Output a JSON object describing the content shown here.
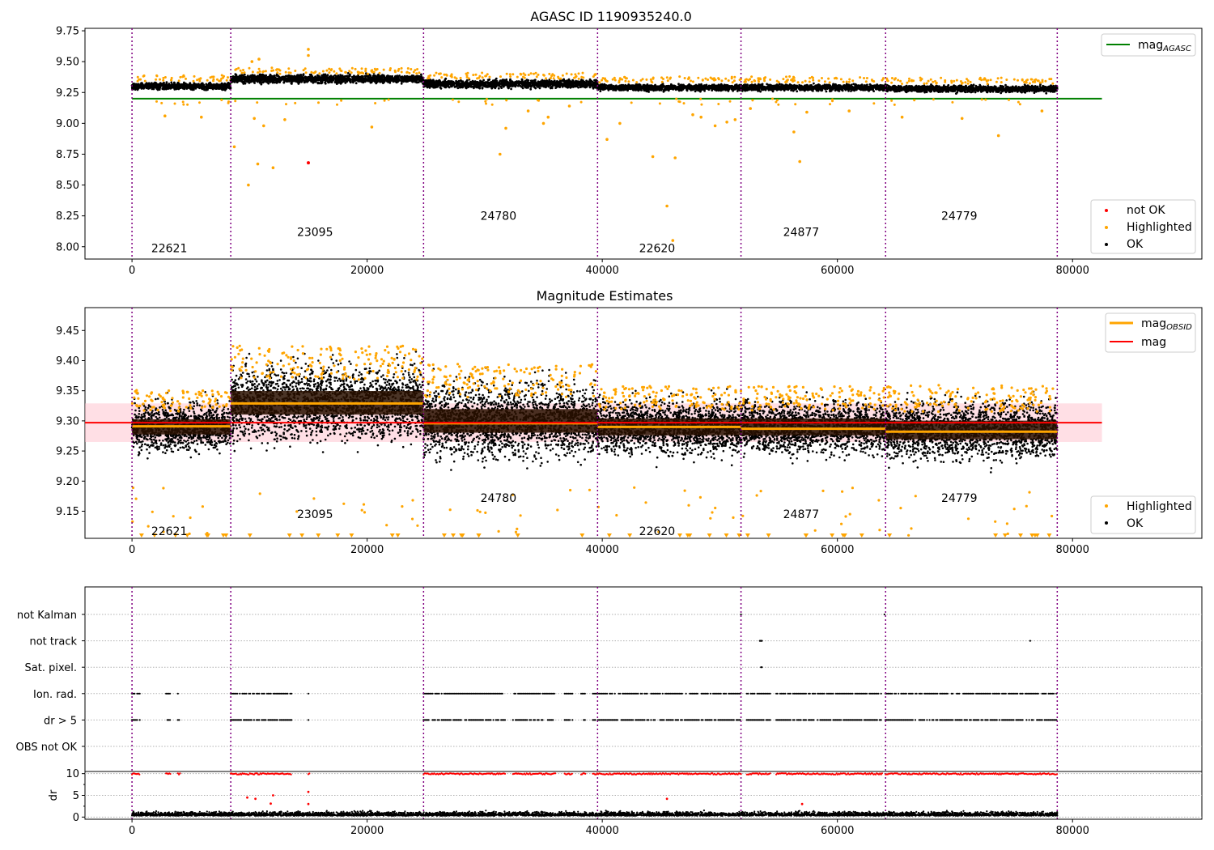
{
  "figure": {
    "background": "#ffffff"
  },
  "colors": {
    "ok": "#000000",
    "highlighted": "#ffa500",
    "not_ok": "#ff0000",
    "agasc_line": "#008000",
    "mag_line": "#ff0000",
    "mag_obsid_line": "#ffa500",
    "mag_band": "#ffc0cb",
    "obs_boundary": "#800080",
    "grid": "#b0b0b0"
  },
  "chart_data": [
    {
      "id": "top",
      "type": "scatter",
      "title": "AGASC ID 1190935240.0",
      "xlim": [
        -4000,
        91000
      ],
      "ylim": [
        7.9,
        9.77
      ],
      "xticks": [
        0,
        20000,
        40000,
        60000,
        80000
      ],
      "yticks": [
        8.0,
        8.25,
        8.5,
        8.75,
        9.0,
        9.25,
        9.5,
        9.75
      ],
      "ytick_labels": [
        "8.00",
        "8.25",
        "8.50",
        "8.75",
        "9.00",
        "9.25",
        "9.50",
        "9.75"
      ],
      "obs_boundaries": [
        0,
        8400,
        24800,
        39600,
        51800,
        64100,
        78700
      ],
      "observations": [
        {
          "obsid": "22621",
          "start": 0,
          "end": 8400,
          "mag": 9.3,
          "spread": 0.035,
          "label_y": 7.99
        },
        {
          "obsid": "23095",
          "start": 8400,
          "end": 24800,
          "mag": 9.36,
          "spread": 0.045,
          "label_y": 8.12
        },
        {
          "obsid": "24780",
          "start": 24800,
          "end": 39600,
          "mag": 9.32,
          "spread": 0.045,
          "label_y": 8.25
        },
        {
          "obsid": "22620",
          "start": 39600,
          "end": 51800,
          "mag": 9.29,
          "spread": 0.035,
          "label_y": 7.99
        },
        {
          "obsid": "24877",
          "start": 51800,
          "end": 64100,
          "mag": 9.29,
          "spread": 0.035,
          "label_y": 8.12
        },
        {
          "obsid": "24779",
          "start": 64100,
          "end": 78700,
          "mag": 9.28,
          "spread": 0.035,
          "label_y": 8.25
        }
      ],
      "mag_agasc": {
        "value": 9.2,
        "x_range": [
          0,
          82500
        ]
      },
      "not_ok_points": [
        {
          "x": 15000,
          "y": 8.68
        }
      ],
      "highlighted_outliers": [
        {
          "x": 8700,
          "y": 8.81
        },
        {
          "x": 9900,
          "y": 8.5
        },
        {
          "x": 10400,
          "y": 9.04
        },
        {
          "x": 10700,
          "y": 8.67
        },
        {
          "x": 11200,
          "y": 8.98
        },
        {
          "x": 12000,
          "y": 8.64
        },
        {
          "x": 2800,
          "y": 9.06
        },
        {
          "x": 5900,
          "y": 9.05
        },
        {
          "x": 10200,
          "y": 9.5
        },
        {
          "x": 10800,
          "y": 9.52
        },
        {
          "x": 13000,
          "y": 9.03
        },
        {
          "x": 20400,
          "y": 8.97
        },
        {
          "x": 15000,
          "y": 9.6
        },
        {
          "x": 15000,
          "y": 9.55
        },
        {
          "x": 31300,
          "y": 8.75
        },
        {
          "x": 31800,
          "y": 8.96
        },
        {
          "x": 33700,
          "y": 9.1
        },
        {
          "x": 35000,
          "y": 9.0
        },
        {
          "x": 35400,
          "y": 9.05
        },
        {
          "x": 37200,
          "y": 9.14
        },
        {
          "x": 40400,
          "y": 8.87
        },
        {
          "x": 41500,
          "y": 9.0
        },
        {
          "x": 44300,
          "y": 8.73
        },
        {
          "x": 45500,
          "y": 8.33
        },
        {
          "x": 46000,
          "y": 8.05
        },
        {
          "x": 46200,
          "y": 8.72
        },
        {
          "x": 47700,
          "y": 9.07
        },
        {
          "x": 48400,
          "y": 9.05
        },
        {
          "x": 49600,
          "y": 8.98
        },
        {
          "x": 50600,
          "y": 9.01
        },
        {
          "x": 51300,
          "y": 9.03
        },
        {
          "x": 52600,
          "y": 9.12
        },
        {
          "x": 56300,
          "y": 8.93
        },
        {
          "x": 56800,
          "y": 8.69
        },
        {
          "x": 57400,
          "y": 9.09
        },
        {
          "x": 61000,
          "y": 9.1
        },
        {
          "x": 65500,
          "y": 9.05
        },
        {
          "x": 70600,
          "y": 9.04
        },
        {
          "x": 73700,
          "y": 8.9
        },
        {
          "x": 77400,
          "y": 9.1
        }
      ],
      "legend_top": [
        "mag$_{AGASC}$"
      ],
      "legend_top_main": "mag",
      "legend_top_sub": "AGASC",
      "legend_bottom": [
        "not OK",
        "Highlighted",
        "OK"
      ]
    },
    {
      "id": "middle",
      "type": "scatter",
      "title": "Magnitude Estimates",
      "xlim": [
        -4000,
        91000
      ],
      "ylim": [
        9.105,
        9.488
      ],
      "xticks": [
        0,
        20000,
        40000,
        60000,
        80000
      ],
      "yticks": [
        9.15,
        9.2,
        9.25,
        9.3,
        9.35,
        9.4,
        9.45
      ],
      "ytick_labels": [
        "9.15",
        "9.20",
        "9.25",
        "9.30",
        "9.35",
        "9.40",
        "9.45"
      ],
      "obs_boundaries": [
        0,
        8400,
        24800,
        39600,
        51800,
        64100,
        78700
      ],
      "observations": [
        {
          "obsid": "22621",
          "start": 0,
          "end": 8400,
          "mag_obsid": 9.291,
          "center": 9.29,
          "spread": 0.045,
          "label_y": 9.117
        },
        {
          "obsid": "23095",
          "start": 8400,
          "end": 24800,
          "mag_obsid": 9.329,
          "center": 9.33,
          "spread": 0.07,
          "label_y": 9.145
        },
        {
          "obsid": "24780",
          "start": 24800,
          "end": 39600,
          "mag_obsid": 9.296,
          "center": 9.3,
          "spread": 0.07,
          "label_y": 9.172
        },
        {
          "obsid": "22620",
          "start": 39600,
          "end": 51800,
          "mag_obsid": 9.29,
          "center": 9.29,
          "spread": 0.05,
          "label_y": 9.117
        },
        {
          "obsid": "24877",
          "start": 51800,
          "end": 64100,
          "mag_obsid": 9.287,
          "center": 9.29,
          "spread": 0.05,
          "label_y": 9.145
        },
        {
          "obsid": "24779",
          "start": 64100,
          "end": 78700,
          "mag_obsid": 9.282,
          "center": 9.285,
          "spread": 0.055,
          "label_y": 9.172
        }
      ],
      "mag": {
        "value": 9.297,
        "band": [
          9.265,
          9.329
        ],
        "x_range": [
          -4000,
          82500
        ]
      },
      "legend_top_main": "mag",
      "legend_top_sub": "OBSID",
      "legend_top_mag": "mag",
      "legend_bottom": [
        "Highlighted",
        "OK"
      ]
    },
    {
      "id": "flags",
      "type": "scatter",
      "xlim": [
        -4000,
        91000
      ],
      "categories": [
        "not Kalman",
        "not track",
        "Sat. pixel.",
        "Ion. rad.",
        "dr > 5",
        "OBS not OK"
      ],
      "flag_spans": {
        "ion_rad": [
          [
            0,
            700
          ],
          [
            2900,
            3300
          ],
          [
            3900,
            4100
          ],
          [
            8400,
            13600
          ],
          [
            15000,
            15100
          ],
          [
            24800,
            31800
          ],
          [
            32400,
            36000
          ],
          [
            36800,
            37500
          ],
          [
            38200,
            38600
          ],
          [
            39200,
            51800
          ],
          [
            52300,
            54300
          ],
          [
            54800,
            63800
          ],
          [
            64100,
            78700
          ]
        ],
        "not_track": [
          [
            53400,
            53600
          ],
          [
            76400,
            76500
          ]
        ],
        "sat_pixel": [
          [
            53500,
            53600
          ]
        ],
        "not_kalman": [
          [
            51800,
            51900
          ],
          [
            64000,
            64100
          ]
        ]
      }
    },
    {
      "id": "dr",
      "type": "scatter",
      "ylabel": "dr",
      "xlim": [
        -4000,
        91000
      ],
      "ylim": [
        -0.5,
        10.5
      ],
      "xticks": [
        0,
        20000,
        40000,
        60000,
        80000
      ],
      "yticks": [
        0,
        5,
        10
      ],
      "ytick_labels": [
        "0",
        "5",
        "10"
      ]
    }
  ],
  "obsid_labels": [
    "22621",
    "23095",
    "24780",
    "22620",
    "24877",
    "24779"
  ]
}
